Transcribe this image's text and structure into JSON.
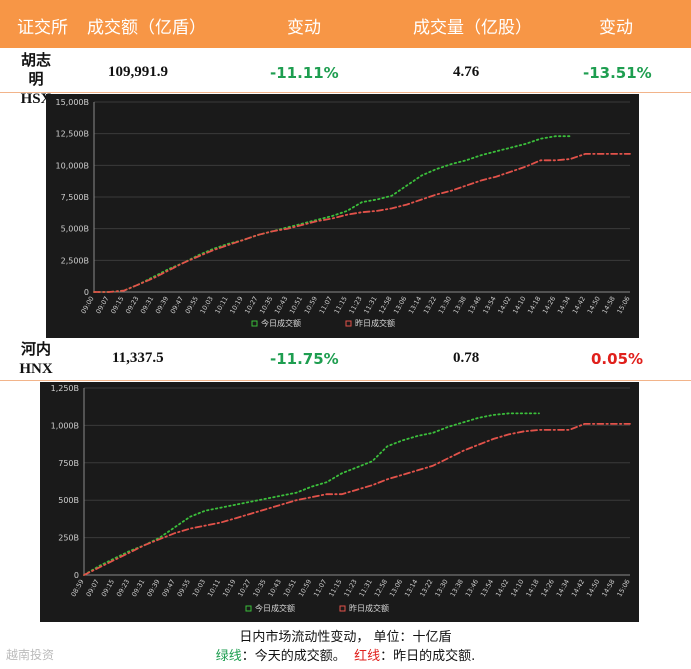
{
  "table": {
    "headers": [
      "证交所",
      "成交额（亿盾）",
      "变动",
      "成交量（亿股）",
      "变动"
    ],
    "rows": [
      {
        "exchange_cn": "胡志明",
        "exchange_code": "HSX",
        "value": "109,991.9",
        "value_change": "-11.11%",
        "volume": "4.76",
        "volume_change": "-13.51%"
      },
      {
        "exchange_cn": "河内",
        "exchange_code": "HNX",
        "value": "11,337.5",
        "value_change": "-11.75%",
        "volume": "0.78",
        "volume_change": "0.05%"
      }
    ]
  },
  "colors": {
    "header_bg": "#f79646",
    "up": "#1e9e50",
    "down": "#e0201c",
    "today_line": "#3bbf3b",
    "yesterday_line": "#e2524a",
    "chart_bg": "#1a1a1a"
  },
  "chart_data": [
    {
      "type": "line",
      "title": "",
      "yticks": [
        "0",
        "2,500B",
        "5,000B",
        "7,500B",
        "10,000B",
        "12,500B",
        "15,000B"
      ],
      "ylim": [
        0,
        15000
      ],
      "x": [
        "09:00",
        "09:07",
        "09:15",
        "09:23",
        "09:31",
        "09:39",
        "09:47",
        "09:55",
        "10:03",
        "10:11",
        "10:19",
        "10:27",
        "10:35",
        "10:43",
        "10:51",
        "10:59",
        "11:07",
        "11:15",
        "11:23",
        "11:31",
        "12:58",
        "13:06",
        "13:14",
        "13:22",
        "13:30",
        "13:38",
        "13:46",
        "13:54",
        "14:02",
        "14:10",
        "14:18",
        "14:26",
        "14:34",
        "14:42",
        "14:50",
        "14:58",
        "15:06"
      ],
      "legend": [
        "今日成交额",
        "昨日成交额"
      ],
      "series": [
        {
          "name": "今日成交额",
          "style": "dotted",
          "values": [
            0,
            0,
            100,
            600,
            1200,
            1800,
            2300,
            2900,
            3400,
            3800,
            4100,
            4500,
            4800,
            5100,
            5400,
            5700,
            6000,
            6400,
            7100,
            7300,
            7600,
            8400,
            9200,
            9700,
            10100,
            10400,
            10800,
            11100,
            11400,
            11700,
            12100,
            12300,
            12300,
            null,
            null,
            null,
            null
          ]
        },
        {
          "name": "昨日成交额",
          "style": "dashdot",
          "values": [
            0,
            0,
            100,
            600,
            1100,
            1700,
            2300,
            2800,
            3300,
            3700,
            4100,
            4500,
            4800,
            5000,
            5300,
            5600,
            5800,
            6100,
            6300,
            6400,
            6600,
            6900,
            7300,
            7700,
            8000,
            8400,
            8800,
            9100,
            9500,
            9900,
            10400,
            10400,
            10500,
            10900,
            10900,
            10900,
            10900
          ]
        }
      ]
    },
    {
      "type": "line",
      "title": "",
      "yticks": [
        "0",
        "250B",
        "500B",
        "750B",
        "1,000B",
        "1,250B"
      ],
      "ylim": [
        0,
        1250
      ],
      "x": [
        "08:59",
        "09:07",
        "09:15",
        "09:23",
        "09:31",
        "09:39",
        "09:47",
        "09:55",
        "10:03",
        "10:11",
        "10:19",
        "10:27",
        "10:35",
        "10:43",
        "10:51",
        "10:59",
        "11:07",
        "11:15",
        "11:23",
        "11:31",
        "12:58",
        "13:06",
        "13:14",
        "13:22",
        "13:30",
        "13:38",
        "13:46",
        "13:54",
        "14:02",
        "14:10",
        "14:18",
        "14:26",
        "14:34",
        "14:42",
        "14:50",
        "14:58",
        "15:06"
      ],
      "legend": [
        "今日成交额",
        "昨日成交额"
      ],
      "series": [
        {
          "name": "今日成交额",
          "style": "dotted",
          "values": [
            0,
            60,
            110,
            160,
            200,
            250,
            320,
            390,
            430,
            450,
            470,
            490,
            510,
            530,
            550,
            590,
            620,
            680,
            720,
            760,
            860,
            900,
            930,
            950,
            990,
            1020,
            1050,
            1070,
            1080,
            1080,
            1080,
            null,
            null,
            null,
            null,
            null,
            null
          ]
        },
        {
          "name": "昨日成交额",
          "style": "dashdot",
          "values": [
            0,
            50,
            100,
            150,
            200,
            240,
            280,
            310,
            330,
            350,
            380,
            410,
            440,
            470,
            500,
            520,
            540,
            540,
            570,
            600,
            640,
            670,
            700,
            730,
            780,
            830,
            870,
            910,
            940,
            960,
            970,
            970,
            970,
            1010,
            1010,
            1010,
            1010
          ]
        }
      ]
    }
  ],
  "footnote": {
    "line1": "日内市场流动性变动，  单位：十亿盾",
    "green_label": "绿线",
    "green_text": "：今天的成交额。",
    "red_label": "红线",
    "red_text": "：昨日的成交额."
  },
  "watermark": "越南投资"
}
